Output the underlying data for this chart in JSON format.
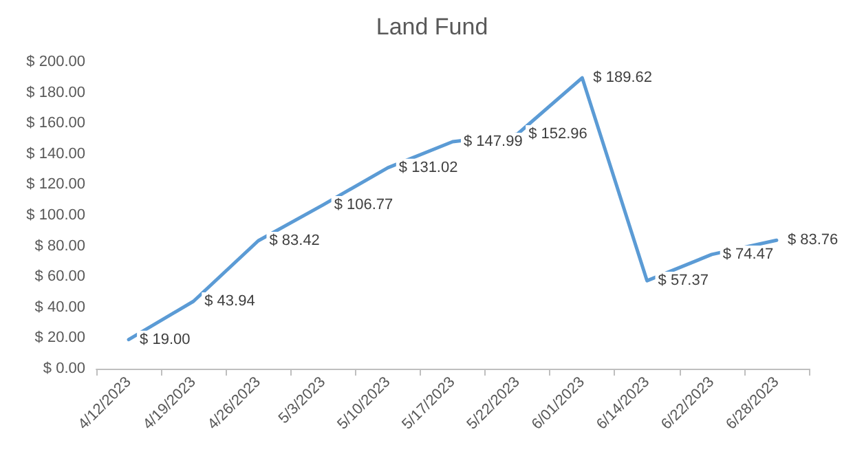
{
  "chart_data": {
    "type": "line",
    "title": "Land Fund",
    "categories": [
      "4/12/2023",
      "4/19/2023",
      "4/26/2023",
      "5/3/2023",
      "5/10/2023",
      "5/17/2023",
      "5/22/2023",
      "6/01/2023",
      "6/14/2023",
      "6/22/2023",
      "6/28/2023"
    ],
    "series": [
      {
        "color": "#5b9bd5",
        "values": [
          19.0,
          43.94,
          83.42,
          106.77,
          131.02,
          147.99,
          152.96,
          189.62,
          57.37,
          74.47,
          83.76
        ],
        "value_labels": [
          "$ 19.00",
          "$ 43.94",
          "$ 83.42",
          "$ 106.77",
          "$ 131.02",
          "$ 147.99",
          "$ 152.96",
          "$ 189.62",
          "$ 57.37",
          "$ 74.47",
          "$ 83.76"
        ]
      }
    ],
    "ylim": [
      0,
      200
    ],
    "yticks": [
      {
        "value": 0,
        "label": "$ 0.00"
      },
      {
        "value": 20,
        "label": "$ 20.00"
      },
      {
        "value": 40,
        "label": "$ 40.00"
      },
      {
        "value": 60,
        "label": "$ 60.00"
      },
      {
        "value": 80,
        "label": "$ 80.00"
      },
      {
        "value": 100,
        "label": "$ 100.00"
      },
      {
        "value": 120,
        "label": "$ 120.00"
      },
      {
        "value": 140,
        "label": "$ 140.00"
      },
      {
        "value": 160,
        "label": "$ 160.00"
      },
      {
        "value": 180,
        "label": "$ 180.00"
      },
      {
        "value": 200,
        "label": "$ 200.00"
      }
    ],
    "grid": false,
    "marker": "none",
    "line_style": "solid"
  }
}
